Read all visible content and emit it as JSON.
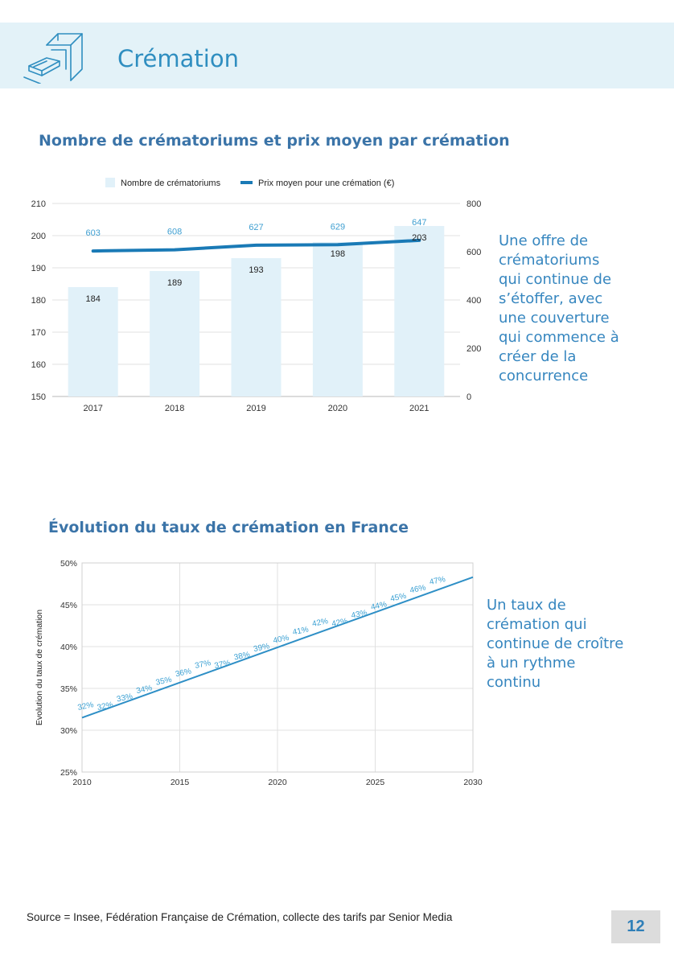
{
  "header": {
    "title": "Crémation"
  },
  "chart_data": [
    {
      "type": "bar",
      "title": "Nombre de crématoriums et prix moyen par crémation",
      "categories": [
        "2017",
        "2018",
        "2019",
        "2020",
        "2021"
      ],
      "series": [
        {
          "name": "Nombre de crématoriums",
          "kind": "bar",
          "axis": "left",
          "values": [
            184,
            189,
            193,
            198,
            203
          ]
        },
        {
          "name": "Prix moyen pour une crémation (€)",
          "kind": "line",
          "axis": "right",
          "values": [
            603,
            608,
            627,
            629,
            647
          ]
        }
      ],
      "y_left": {
        "min": 150,
        "max": 210,
        "ticks": [
          150,
          160,
          170,
          180,
          190,
          200,
          210
        ]
      },
      "y_right": {
        "min": 0,
        "max": 800,
        "ticks": [
          0,
          200,
          400,
          600,
          800
        ]
      },
      "legend": "top-center",
      "grid": true,
      "colors": {
        "bar": "#e1f1f9",
        "line": "#1a7ab6",
        "label_blue": "#3f9fd1"
      }
    },
    {
      "type": "line",
      "title": "Évolution du taux de crémation en France",
      "ylabel": "Evolution du taux de crémation",
      "xlabel": "",
      "x": [
        2011,
        2012,
        2013,
        2014,
        2015,
        2016,
        2017,
        2018,
        2019,
        2020,
        2021,
        2022,
        2023,
        2024,
        2025,
        2026,
        2027
      ],
      "point_labels": [
        "32%",
        "32%",
        "33%",
        "34%",
        "35%",
        "36%",
        "37%",
        "37%",
        "38%",
        "39%",
        "40%",
        "41%",
        "42%",
        "42%",
        "43%",
        "44%",
        "45%",
        "46%",
        "47%"
      ],
      "label_years": [
        2010,
        2011,
        2012,
        2013,
        2014,
        2015,
        2016,
        2017,
        2018,
        2019,
        2020,
        2021,
        2022,
        2023,
        2024,
        2025,
        2026,
        2027,
        2028
      ],
      "trend": {
        "x": [
          2010,
          2030
        ],
        "y": [
          31.5,
          48.3
        ]
      },
      "xlim": [
        2010,
        2030
      ],
      "ylim": [
        25,
        50
      ],
      "x_ticks": [
        "2010",
        "2015",
        "2020",
        "2025",
        "2030"
      ],
      "y_ticks": [
        "25%",
        "30%",
        "35%",
        "40%",
        "45%",
        "50%"
      ],
      "grid": true,
      "colors": {
        "line": "#2e8fc6",
        "label": "#3aa0d3"
      }
    }
  ],
  "notes": {
    "note1": [
      "Une offre de",
      "crématoriums",
      "qui continue de",
      "s’étoffer, avec",
      "une couverture",
      "qui commence à",
      "créer de la",
      "concurrence"
    ],
    "note2": [
      "Un taux de",
      "crémation qui",
      "continue de croître",
      "à un rythme",
      "continu"
    ]
  },
  "footer": {
    "source": "Source = Insee, Fédération Française de Crémation, collecte des tarifs par Senior Media",
    "page_number": "12"
  }
}
